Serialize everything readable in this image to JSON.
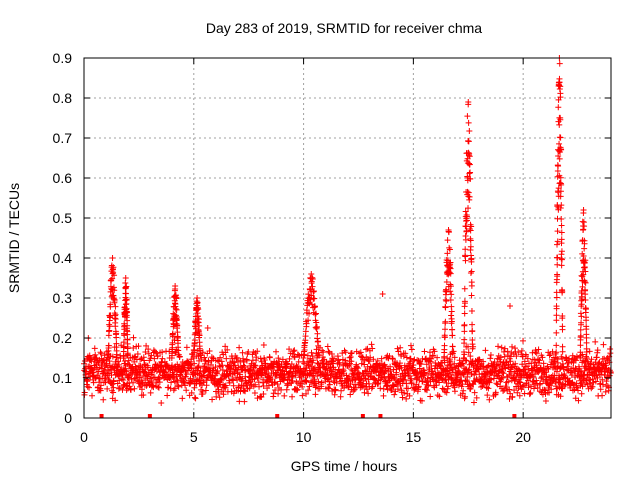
{
  "chart_data": {
    "type": "scatter",
    "title": "Day 283 of 2019, SRMTID for receiver chma",
    "xlabel": "GPS time / hours",
    "ylabel": "SRMTID / TECUs",
    "xlim": [
      0,
      24
    ],
    "ylim": [
      0,
      0.9
    ],
    "xticks": [
      0,
      5,
      10,
      15,
      20
    ],
    "yticks": [
      0,
      0.1,
      0.2,
      0.3,
      0.4,
      0.5,
      0.6,
      0.7,
      0.8,
      0.9
    ],
    "grid": true,
    "marker": "plus",
    "color": "#ff0000",
    "baseline_band": [
      0.05,
      0.2
    ],
    "bursts": [
      {
        "x_range": [
          1.1,
          1.5
        ],
        "peak": 0.4
      },
      {
        "x_range": [
          1.8,
          2.0
        ],
        "peak": 0.35
      },
      {
        "x_range": [
          4.0,
          4.3
        ],
        "peak": 0.33
      },
      {
        "x_range": [
          5.0,
          5.3
        ],
        "peak": 0.3
      },
      {
        "x_range": [
          10.0,
          10.7
        ],
        "peak": 0.36
      },
      {
        "x_range": [
          16.4,
          16.8
        ],
        "peak": 0.47
      },
      {
        "x_range": [
          17.3,
          17.7
        ],
        "peak": 0.79
      },
      {
        "x_range": [
          21.5,
          21.8
        ],
        "peak": 0.9
      },
      {
        "x_range": [
          22.6,
          22.9
        ],
        "peak": 0.52
      }
    ],
    "isolated_points": [
      {
        "x": 13.6,
        "y": 0.31
      },
      {
        "x": 19.4,
        "y": 0.28
      }
    ],
    "zero_markers_x": [
      0.8,
      3.0,
      8.8,
      12.7,
      13.5,
      19.6
    ]
  }
}
